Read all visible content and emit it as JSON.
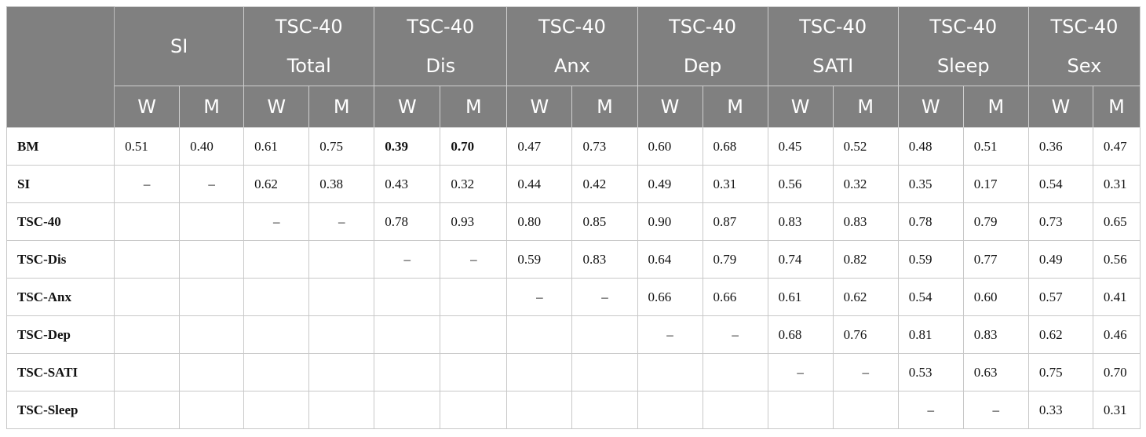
{
  "header": {
    "row1": [
      "SI",
      "TSC-40",
      "TSC-40",
      "TSC-40",
      "TSC-40",
      "TSC-40",
      "TSC-40",
      "TSC-40"
    ],
    "row2": [
      "Total",
      "Dis",
      "Anx",
      "Dep",
      "SATI",
      "Sleep",
      "Sex"
    ],
    "sub": [
      "W",
      "M",
      "W",
      "M",
      "W",
      "M",
      "W",
      "M",
      "W",
      "M",
      "W",
      "M",
      "W",
      "M",
      "W",
      "M"
    ]
  },
  "rows": [
    {
      "label": "BM",
      "cells": [
        "0.51",
        "0.40",
        "0.61",
        "0.75",
        "0.39",
        "0.70",
        "0.47",
        "0.73",
        "0.60",
        "0.68",
        "0.45",
        "0.52",
        "0.48",
        "0.51",
        "0.36",
        "0.47"
      ],
      "bold": [
        4,
        5
      ]
    },
    {
      "label": "SI",
      "cells": [
        "–",
        "–",
        "0.62",
        "0.38",
        "0.43",
        "0.32",
        "0.44",
        "0.42",
        "0.49",
        "0.31",
        "0.56",
        "0.32",
        "0.35",
        "0.17",
        "0.54",
        "0.31"
      ],
      "bold": []
    },
    {
      "label": "TSC-40",
      "cells": [
        "",
        "",
        "–",
        "–",
        "0.78",
        "0.93",
        "0.80",
        "0.85",
        "0.90",
        "0.87",
        "0.83",
        "0.83",
        "0.78",
        "0.79",
        "0.73",
        "0.65"
      ],
      "bold": []
    },
    {
      "label": "TSC-Dis",
      "cells": [
        "",
        "",
        "",
        "",
        "–",
        "–",
        "0.59",
        "0.83",
        "0.64",
        "0.79",
        "0.74",
        "0.82",
        "0.59",
        "0.77",
        "0.49",
        "0.56"
      ],
      "bold": []
    },
    {
      "label": "TSC-Anx",
      "cells": [
        "",
        "",
        "",
        "",
        "",
        "",
        "–",
        "–",
        "0.66",
        "0.66",
        "0.61",
        "0.62",
        "0.54",
        "0.60",
        "0.57",
        "0.41"
      ],
      "bold": []
    },
    {
      "label": "TSC-Dep",
      "cells": [
        "",
        "",
        "",
        "",
        "",
        "",
        "",
        "",
        "–",
        "–",
        "0.68",
        "0.76",
        "0.81",
        "0.83",
        "0.62",
        "0.46"
      ],
      "bold": []
    },
    {
      "label": "TSC-SATI",
      "cells": [
        "",
        "",
        "",
        "",
        "",
        "",
        "",
        "",
        "",
        "",
        "–",
        "–",
        "0.53",
        "0.63",
        "0.75",
        "0.70"
      ],
      "bold": []
    },
    {
      "label": "TSC-Sleep",
      "cells": [
        "",
        "",
        "",
        "",
        "",
        "",
        "",
        "",
        "",
        "",
        "",
        "",
        "–",
        "–",
        "0.33",
        "0.31"
      ],
      "bold": []
    }
  ]
}
